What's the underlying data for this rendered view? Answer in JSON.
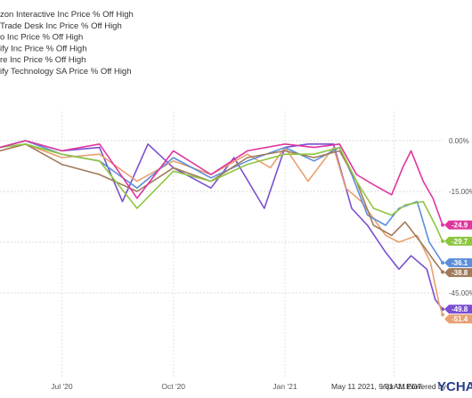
{
  "chart_data": {
    "type": "line",
    "title": "",
    "xlabel": "",
    "ylabel": "",
    "ylim": [
      -55,
      2
    ],
    "yticks": [
      {
        "value": 0,
        "label": "0.00%"
      },
      {
        "value": -15,
        "label": "-15.00%"
      },
      {
        "value": -30,
        "label": "-30.00%"
      },
      {
        "value": -45,
        "label": "-45.00%"
      }
    ],
    "xticks": [
      {
        "date": "2020-07-01",
        "label": "Jul '20"
      },
      {
        "date": "2020-10-01",
        "label": "Oct '20"
      },
      {
        "date": "2021-01-01",
        "label": "Jan '21"
      },
      {
        "date": "2021-04-01",
        "label": "Apr '21"
      }
    ],
    "xlim": [
      "2020-05-11",
      "2021-05-11"
    ],
    "grid": true,
    "legend_position": "top-left",
    "series": [
      {
        "name": "zon Interactive Inc Price % Off High",
        "color": "#7a4fd0",
        "last_label": "-49.8",
        "points": [
          [
            "2020-05-11",
            -2
          ],
          [
            "2020-06-01",
            0
          ],
          [
            "2020-07-01",
            -3
          ],
          [
            "2020-08-01",
            -2
          ],
          [
            "2020-08-20",
            -18
          ],
          [
            "2020-09-10",
            -1
          ],
          [
            "2020-10-01",
            -8
          ],
          [
            "2020-11-01",
            -14
          ],
          [
            "2020-11-20",
            -5
          ],
          [
            "2020-12-15",
            -20
          ],
          [
            "2021-01-01",
            -2
          ],
          [
            "2021-01-20",
            -1
          ],
          [
            "2021-02-10",
            -1
          ],
          [
            "2021-02-25",
            -20
          ],
          [
            "2021-03-10",
            -25
          ],
          [
            "2021-03-25",
            -33
          ],
          [
            "2021-04-05",
            -38
          ],
          [
            "2021-04-15",
            -34
          ],
          [
            "2021-04-28",
            -38
          ],
          [
            "2021-05-05",
            -47
          ],
          [
            "2021-05-11",
            -49.8
          ]
        ]
      },
      {
        "name": "Trade Desk Inc Price % Off High",
        "color": "#e8a070",
        "last_label": "-51.4",
        "points": [
          [
            "2020-05-11",
            -3
          ],
          [
            "2020-06-01",
            -1
          ],
          [
            "2020-07-01",
            -5
          ],
          [
            "2020-08-01",
            -4
          ],
          [
            "2020-09-01",
            -12
          ],
          [
            "2020-10-01",
            -6
          ],
          [
            "2020-11-01",
            -10
          ],
          [
            "2020-12-01",
            -4
          ],
          [
            "2020-12-20",
            -8
          ],
          [
            "2021-01-01",
            -2
          ],
          [
            "2021-01-20",
            -12
          ],
          [
            "2021-02-10",
            -2
          ],
          [
            "2021-02-20",
            -14
          ],
          [
            "2021-03-05",
            -18
          ],
          [
            "2021-03-15",
            -23
          ],
          [
            "2021-03-25",
            -28
          ],
          [
            "2021-04-05",
            -30
          ],
          [
            "2021-04-20",
            -28
          ],
          [
            "2021-05-01",
            -36
          ],
          [
            "2021-05-08",
            -48
          ],
          [
            "2021-05-11",
            -51.4
          ]
        ]
      },
      {
        "name": "o Inc Price % Off High",
        "color": "#5b8fd9",
        "last_label": "-36.1",
        "points": [
          [
            "2020-05-11",
            -2
          ],
          [
            "2020-06-01",
            0
          ],
          [
            "2020-07-01",
            -4
          ],
          [
            "2020-08-01",
            -6
          ],
          [
            "2020-09-01",
            -14
          ],
          [
            "2020-10-01",
            -5
          ],
          [
            "2020-11-01",
            -11
          ],
          [
            "2020-12-01",
            -6
          ],
          [
            "2021-01-01",
            -2
          ],
          [
            "2021-01-25",
            -6
          ],
          [
            "2021-02-15",
            -2
          ],
          [
            "2021-02-25",
            -10
          ],
          [
            "2021-03-10",
            -22
          ],
          [
            "2021-03-25",
            -25
          ],
          [
            "2021-04-05",
            -20
          ],
          [
            "2021-04-20",
            -18
          ],
          [
            "2021-04-30",
            -30
          ],
          [
            "2021-05-11",
            -36.1
          ]
        ]
      },
      {
        "name": "ify Inc Price % Off High",
        "color": "#a07a5a",
        "last_label": "-38.8",
        "points": [
          [
            "2020-05-11",
            -3
          ],
          [
            "2020-06-01",
            -1
          ],
          [
            "2020-07-01",
            -7
          ],
          [
            "2020-08-01",
            -10
          ],
          [
            "2020-09-01",
            -15
          ],
          [
            "2020-10-01",
            -8
          ],
          [
            "2020-11-01",
            -12
          ],
          [
            "2020-12-01",
            -5
          ],
          [
            "2021-01-01",
            -3
          ],
          [
            "2021-01-25",
            -5
          ],
          [
            "2021-02-15",
            -3
          ],
          [
            "2021-03-01",
            -12
          ],
          [
            "2021-03-15",
            -25
          ],
          [
            "2021-03-30",
            -28
          ],
          [
            "2021-04-10",
            -24
          ],
          [
            "2021-04-25",
            -31
          ],
          [
            "2021-05-05",
            -36
          ],
          [
            "2021-05-11",
            -38.8
          ]
        ]
      },
      {
        "name": "re Inc Price % Off High",
        "color": "#8dc63f",
        "last_label": "-29.7",
        "points": [
          [
            "2020-05-11",
            -2
          ],
          [
            "2020-06-01",
            -1
          ],
          [
            "2020-07-01",
            -4
          ],
          [
            "2020-08-01",
            -6
          ],
          [
            "2020-09-01",
            -20
          ],
          [
            "2020-10-01",
            -9
          ],
          [
            "2020-11-01",
            -12
          ],
          [
            "2020-12-01",
            -7
          ],
          [
            "2021-01-01",
            -4
          ],
          [
            "2021-01-25",
            -4
          ],
          [
            "2021-02-15",
            -2
          ],
          [
            "2021-03-01",
            -12
          ],
          [
            "2021-03-15",
            -20
          ],
          [
            "2021-03-30",
            -22
          ],
          [
            "2021-04-10",
            -19
          ],
          [
            "2021-04-25",
            -18
          ],
          [
            "2021-05-05",
            -25
          ],
          [
            "2021-05-11",
            -29.7
          ]
        ]
      },
      {
        "name": "ify Technology SA Price % Off High",
        "color": "#e0359e",
        "last_label": "-24.9",
        "points": [
          [
            "2020-05-11",
            -2
          ],
          [
            "2020-06-01",
            0
          ],
          [
            "2020-07-01",
            -3
          ],
          [
            "2020-08-01",
            -1
          ],
          [
            "2020-09-01",
            -17
          ],
          [
            "2020-10-01",
            -3
          ],
          [
            "2020-11-01",
            -10
          ],
          [
            "2020-12-01",
            -3
          ],
          [
            "2021-01-01",
            -1
          ],
          [
            "2021-01-25",
            -2
          ],
          [
            "2021-02-15",
            -1
          ],
          [
            "2021-03-01",
            -10
          ],
          [
            "2021-03-15",
            -13
          ],
          [
            "2021-03-30",
            -16
          ],
          [
            "2021-04-08",
            -8
          ],
          [
            "2021-04-15",
            -3
          ],
          [
            "2021-04-25",
            -12
          ],
          [
            "2021-05-03",
            -17
          ],
          [
            "2021-05-11",
            -24.9
          ]
        ]
      }
    ]
  },
  "footer": {
    "timestamp": "May 11 2021, 9:31AM EDT.",
    "powered_by": "Powered by",
    "brand": "YCHA"
  }
}
